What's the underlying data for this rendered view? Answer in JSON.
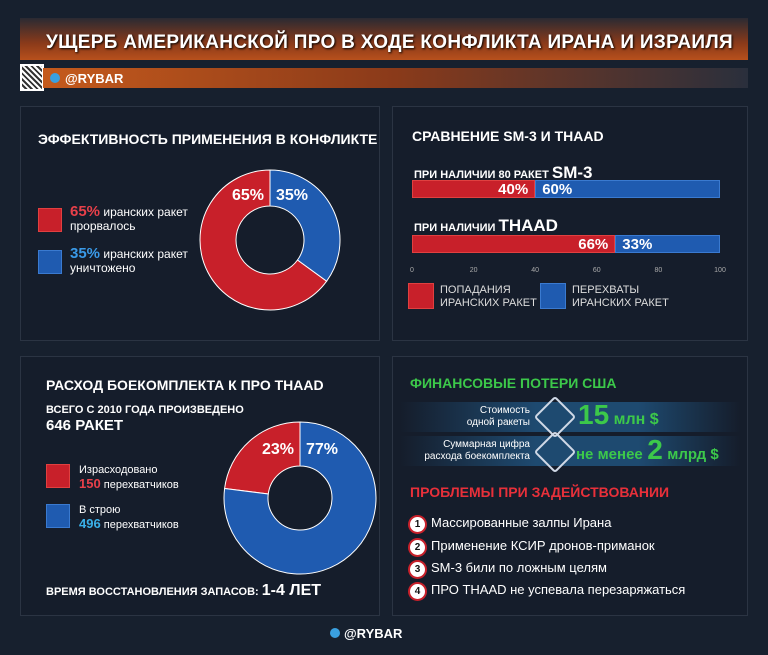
{
  "header": {
    "title": "УЩЕРБ АМЕРИКАНСКОЙ ПРО В ХОДЕ КОНФЛИКТА ИРАНА И ИЗРАИЛЯ",
    "channel": "@RYBAR"
  },
  "footer": {
    "channel": "@RYBAR"
  },
  "colors": {
    "red": "#c8202a",
    "blue": "#1f5bb0",
    "green": "#3cc84a",
    "orange": "#c55a1c"
  },
  "panel1": {
    "title": "ЭФФЕКТИВНОСТЬ ПРИМЕНЕНИЯ В КОНФЛИКТЕ",
    "legend": [
      {
        "value": "65%",
        "text1": "иранских ракет",
        "text2": "прорвалось"
      },
      {
        "value": "35%",
        "text1": "иранских ракет",
        "text2": "уничтожено"
      }
    ]
  },
  "panel2": {
    "title": "СРАВНЕНИЕ SM-3 И THAAD",
    "row1_prefix": "ПРИ НАЛИЧИИ 80 РАКЕТ",
    "row1_name": "SM-3",
    "row2_prefix": "ПРИ НАЛИЧИИ",
    "row2_name": "THAAD",
    "legend_red": [
      "ПОПАДАНИЯ",
      "ИРАНСКИХ РАКЕТ"
    ],
    "legend_blue": [
      "ПЕРЕХВАТЫ",
      "ИРАНСКИХ РАКЕТ"
    ]
  },
  "panel3": {
    "title": "РАСХОД БОЕКОМПЛЕКТА К ПРО THAAD",
    "total_line": "ВСЕГО С 2010 ГОДА ПРОИЗВЕДЕНО",
    "total_value": "646 РАКЕТ",
    "legend": [
      {
        "label": "Израсходовано",
        "value": "150",
        "unit": "перехватчиков"
      },
      {
        "label": "В строю",
        "value": "496",
        "unit": "перехватчиков"
      }
    ],
    "restore_label": "ВРЕМЯ ВОССТАНОВЛЕНИЯ ЗАПАСОВ:",
    "restore_value": "1-4 ЛЕТ"
  },
  "panel4": {
    "fin_title": "ФИНАНСОВЫЕ ПОТЕРИ США",
    "cost1_label": [
      "Стоимость",
      "одной ракеты"
    ],
    "cost1_value": "15",
    "cost1_unit": "млн $",
    "cost2_label": [
      "Суммарная цифра",
      "расхода боекомплекта"
    ],
    "cost2_prefix": "не менее",
    "cost2_value": "2",
    "cost2_unit": "млрд $",
    "icons": [
      "missile-icon",
      "launcher-icon"
    ],
    "problems_title": "ПРОБЛЕМЫ ПРИ ЗАДЕЙСТВОВАНИИ",
    "problems": [
      {
        "n": "1",
        "text": "Массированные залпы Ирана"
      },
      {
        "n": "2",
        "text": "Применение КСИР дронов-приманок"
      },
      {
        "n": "3",
        "text": "SM-3 били по ложным целям"
      },
      {
        "n": "4",
        "text": "ПРО THAAD не успевала перезаряжаться"
      }
    ]
  },
  "chart_data": [
    {
      "type": "pie",
      "donut": true,
      "categories": [
        "прорвалось",
        "уничтожено"
      ],
      "values": [
        65,
        35
      ],
      "labels": [
        "65%",
        "35%"
      ]
    },
    {
      "type": "bar",
      "orientation": "horizontal",
      "stacked": true,
      "categories": [
        "SM-3",
        "THAAD"
      ],
      "series": [
        {
          "name": "ПОПАДАНИЯ ИРАНСКИХ РАКЕТ",
          "values": [
            40,
            66
          ],
          "labels": [
            "40%",
            "66%"
          ]
        },
        {
          "name": "ПЕРЕХВАТЫ ИРАНСКИХ РАКЕТ",
          "values": [
            60,
            33
          ],
          "labels": [
            "60%",
            "33%"
          ]
        }
      ],
      "xlim": [
        0,
        100
      ],
      "xticks": [
        "0",
        "20",
        "40",
        "60",
        "80",
        "100"
      ],
      "legend": "bottom"
    },
    {
      "type": "pie",
      "donut": true,
      "categories": [
        "Израсходовано",
        "В строю"
      ],
      "values": [
        23,
        77
      ],
      "labels": [
        "23%",
        "77%"
      ]
    }
  ]
}
